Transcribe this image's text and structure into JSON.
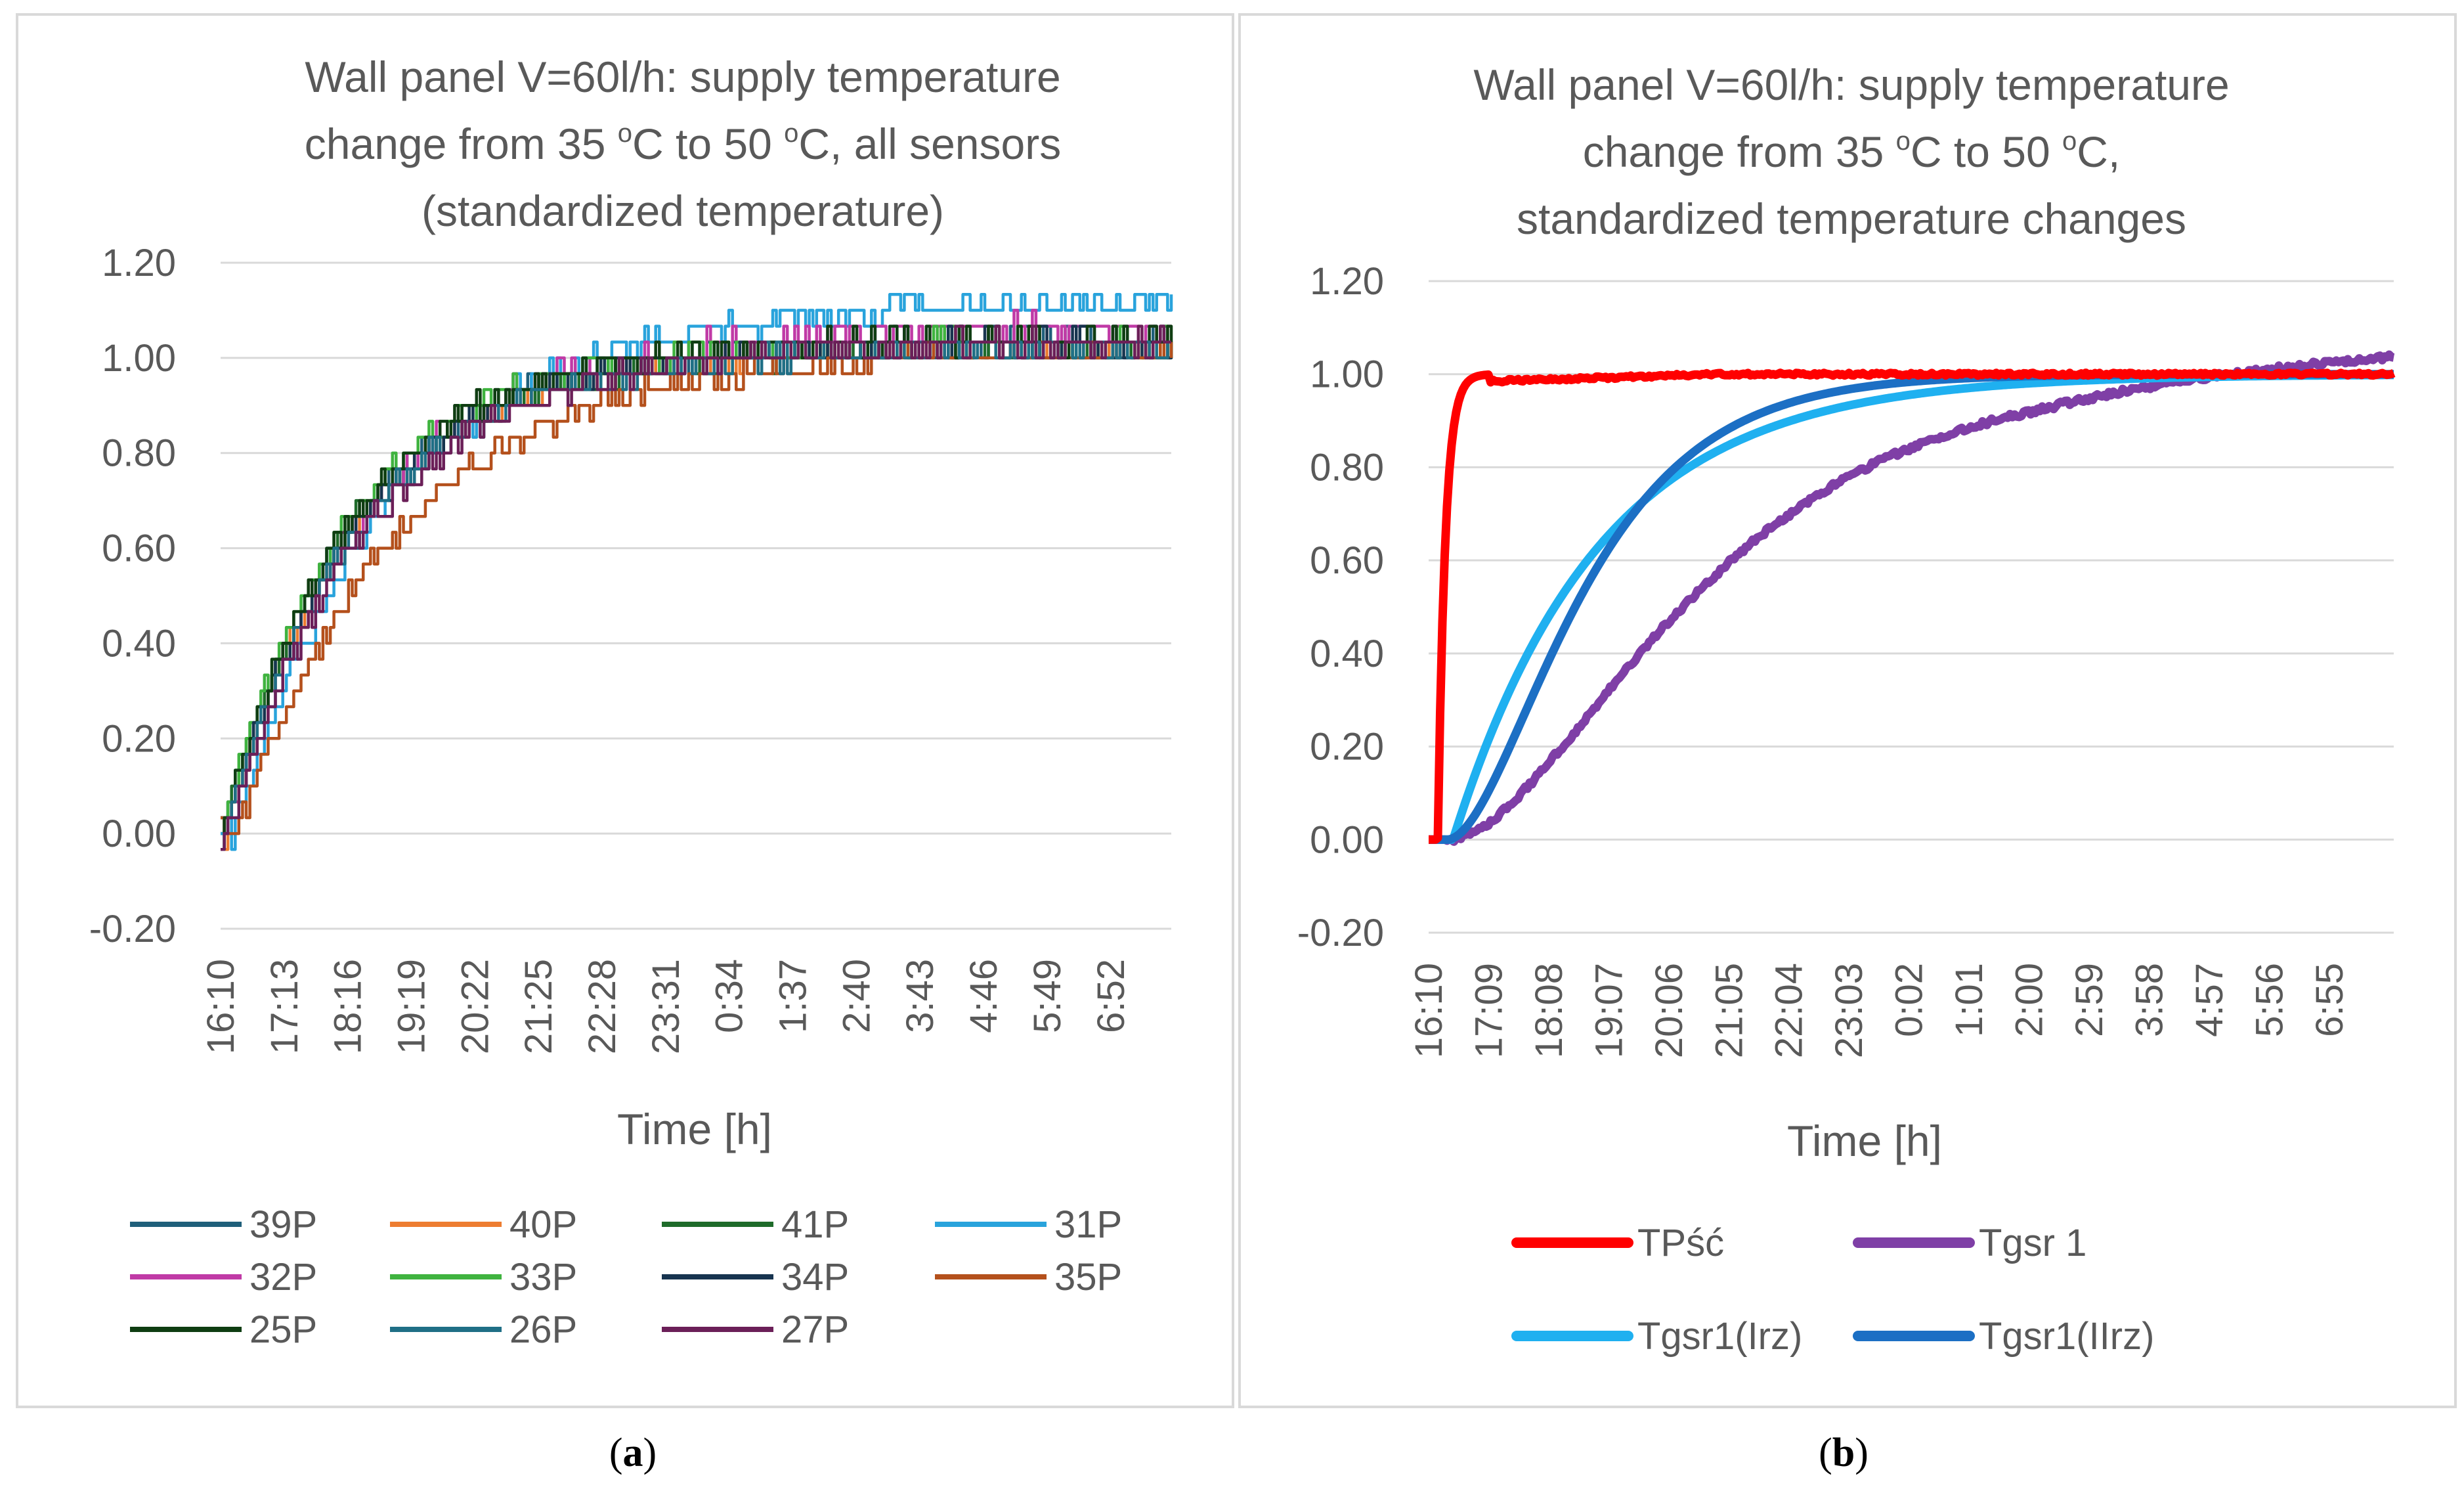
{
  "captions": {
    "a_open": "(",
    "a_letter": "a",
    "a_close": ")",
    "b_open": "(",
    "b_letter": "b",
    "b_close": ")"
  },
  "chart_data": [
    {
      "id": "a",
      "type": "line",
      "title_lines": [
        "Wall panel V=60l/h: supply temperature",
        "change from 35 °C to 50 °C, all sensors",
        "(standardized temperature)"
      ],
      "title_parts": {
        "line2": {
          "pre": "change from 35 ",
          "sup1": "o",
          "mid": "C to 50 ",
          "sup2": "o",
          "post": "C, all sensors"
        }
      },
      "xlabel": "Time [h]",
      "ylabel": "",
      "ylim": [
        -0.2,
        1.2
      ],
      "yticks": [
        "1.20",
        "1.00",
        "0.80",
        "0.60",
        "0.40",
        "0.20",
        "0.00",
        "-0.20"
      ],
      "ytick_values": [
        1.2,
        1.0,
        0.8,
        0.6,
        0.4,
        0.2,
        0.0,
        -0.2
      ],
      "xticks": [
        "16:10",
        "17:13",
        "18:16",
        "19:19",
        "20:22",
        "21:25",
        "22:28",
        "23:31",
        "0:34",
        "1:37",
        "2:40",
        "3:43",
        "4:46",
        "5:49",
        "6:52"
      ],
      "x_range_h": [
        0,
        15.7
      ],
      "x_tick_spacing_h": 1.05,
      "grid": true,
      "legend_position": "bottom",
      "series": [
        {
          "name": "39P",
          "color": "#1f5f7a",
          "tau": 2.2,
          "end": 1.03,
          "lag": 0.0
        },
        {
          "name": "40P",
          "color": "#ed7d31",
          "tau": 2.2,
          "end": 1.02,
          "lag": 0.05
        },
        {
          "name": "41P",
          "color": "#1e6b2a",
          "tau": 2.15,
          "end": 1.02,
          "lag": 0.0
        },
        {
          "name": "31P",
          "color": "#29a3dc",
          "tau": 2.6,
          "end": 1.11,
          "lag": 0.2
        },
        {
          "name": "32P",
          "color": "#c03aa6",
          "tau": 2.3,
          "end": 1.06,
          "lag": 0.05
        },
        {
          "name": "33P",
          "color": "#3fb33f",
          "tau": 2.05,
          "end": 1.03,
          "lag": 0.0
        },
        {
          "name": "34P",
          "color": "#17344f",
          "tau": 2.2,
          "end": 1.03,
          "lag": 0.05
        },
        {
          "name": "35P",
          "color": "#b4501c",
          "tau": 2.7,
          "end": 1.01,
          "lag": 0.25
        },
        {
          "name": "25P",
          "color": "#0f3d12",
          "tau": 2.15,
          "end": 1.04,
          "lag": 0.0
        },
        {
          "name": "26P",
          "color": "#1f6f86",
          "tau": 2.25,
          "end": 1.02,
          "lag": 0.05
        },
        {
          "name": "27P",
          "color": "#6b1f58",
          "tau": 2.35,
          "end": 1.03,
          "lag": 0.1
        }
      ]
    },
    {
      "id": "b",
      "type": "line",
      "title_lines": [
        "Wall panel V=60l/h: supply temperature",
        "change from 35 °C to 50 °C,",
        "standardized temperature changes"
      ],
      "title_parts": {
        "line2": {
          "pre": "change from 35 ",
          "sup1": "o",
          "mid": "C to 50 ",
          "sup2": "o",
          "post": "C,"
        }
      },
      "xlabel": "Time [h]",
      "ylabel": "",
      "ylim": [
        -0.2,
        1.2
      ],
      "yticks": [
        "1.20",
        "1.00",
        "0.80",
        "0.60",
        "0.40",
        "0.20",
        "0.00",
        "-0.20"
      ],
      "ytick_values": [
        1.2,
        1.0,
        0.8,
        0.6,
        0.4,
        0.2,
        0.0,
        -0.2
      ],
      "xticks": [
        "16:10",
        "17:09",
        "18:08",
        "19:07",
        "20:06",
        "21:05",
        "22:04",
        "23:03",
        "0:02",
        "1:01",
        "2:00",
        "2:59",
        "3:58",
        "4:57",
        "5:56",
        "6:55"
      ],
      "x_range_h": [
        0,
        15.8
      ],
      "x_tick_spacing_h": 0.983,
      "grid": true,
      "legend_position": "bottom",
      "series": [
        {
          "name": "TPść",
          "color": "#ff0000",
          "kind": "step",
          "tau": 0.12,
          "lag": 0.15,
          "end": 1.0
        },
        {
          "name": "Tgsr 1",
          "color": "#7f3fa6",
          "kind": "sshape",
          "tau": 2.3,
          "lag": 0.3,
          "end": 1.04
        },
        {
          "name": "Tgsr1(Irz)",
          "color": "#1fb0f0",
          "kind": "firstorder",
          "tau": 2.6,
          "lag": 0.4,
          "end": 1.0
        },
        {
          "name": "Tgsr1(IIrz)",
          "color": "#1c6fc4",
          "kind": "sshape2",
          "tau": 2.4,
          "lag": 0.3,
          "end": 1.0
        }
      ]
    }
  ]
}
